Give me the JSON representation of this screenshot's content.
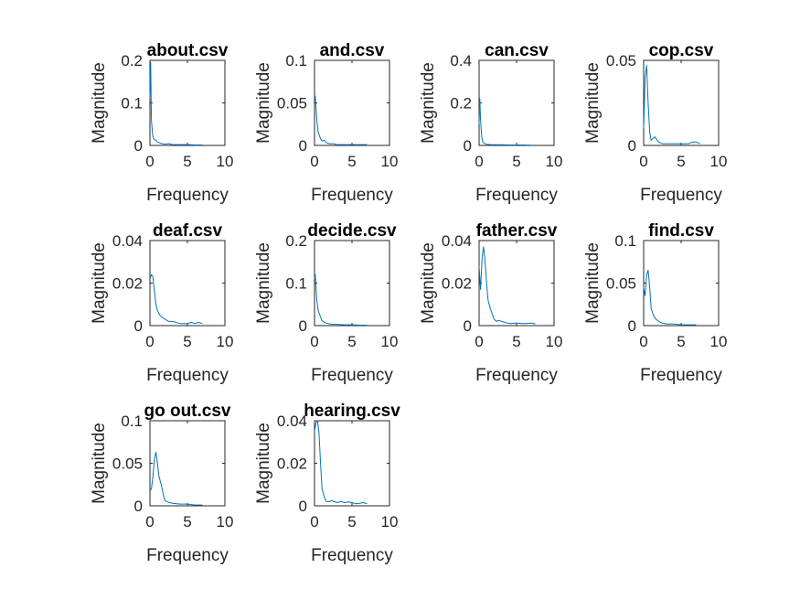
{
  "figure": {
    "background": "#ffffff",
    "line_color": "#0072bd",
    "axis_color": "#262626"
  },
  "chart_data": [
    {
      "type": "line",
      "title": "about.csv",
      "xlabel": "Frequency",
      "ylabel": "Magnitude",
      "xlim": [
        0,
        10
      ],
      "ylim": [
        0,
        0.2
      ],
      "xticks": [
        0,
        5,
        10
      ],
      "yticks": [
        0,
        0.1,
        0.2
      ],
      "grid": false,
      "series": [
        {
          "x": [
            0,
            0.1,
            0.2,
            0.35,
            0.5,
            0.8,
            1.0,
            1.3,
            1.6,
            2.0,
            2.5,
            3.0,
            4.0,
            5.0,
            6.0,
            7.0
          ],
          "y": [
            0.11,
            0.195,
            0.06,
            0.025,
            0.015,
            0.012,
            0.008,
            0.006,
            0.004,
            0.003,
            0.004,
            0.002,
            0.002,
            0.002,
            0.001,
            0.001
          ]
        }
      ]
    },
    {
      "type": "line",
      "title": "and.csv",
      "xlabel": "Frequency",
      "ylabel": "Magnitude",
      "xlim": [
        0,
        10
      ],
      "ylim": [
        0,
        0.1
      ],
      "xticks": [
        0,
        5,
        10
      ],
      "yticks": [
        0,
        0.05,
        0.1
      ],
      "grid": false,
      "series": [
        {
          "x": [
            0,
            0.1,
            0.3,
            0.5,
            0.8,
            1.0,
            1.3,
            1.6,
            2.0,
            2.5,
            3.0,
            4.0,
            5.0,
            6.0,
            7.0
          ],
          "y": [
            0.055,
            0.058,
            0.03,
            0.015,
            0.008,
            0.005,
            0.006,
            0.003,
            0.002,
            0.002,
            0.001,
            0.001,
            0.001,
            0.001,
            0.001
          ]
        }
      ]
    },
    {
      "type": "line",
      "title": "can.csv",
      "xlabel": "Frequency",
      "ylabel": "Magnitude",
      "xlim": [
        0,
        10
      ],
      "ylim": [
        0,
        0.4
      ],
      "xticks": [
        0,
        5,
        10
      ],
      "yticks": [
        0,
        0.2,
        0.4
      ],
      "grid": false,
      "series": [
        {
          "x": [
            0,
            0.1,
            0.2,
            0.35,
            0.5,
            0.8,
            1.0,
            1.5,
            2.0,
            3.0,
            4.0,
            5.0,
            6.0,
            7.0
          ],
          "y": [
            0.1,
            0.22,
            0.12,
            0.04,
            0.015,
            0.008,
            0.005,
            0.004,
            0.003,
            0.003,
            0.002,
            0.002,
            0.002,
            0.001
          ]
        }
      ]
    },
    {
      "type": "line",
      "title": "cop.csv",
      "xlabel": "Frequency",
      "ylabel": "Magnitude",
      "xlim": [
        0,
        10
      ],
      "ylim": [
        0,
        0.05
      ],
      "xticks": [
        0,
        5,
        10
      ],
      "yticks": [
        0,
        0.05
      ],
      "grid": false,
      "series": [
        {
          "x": [
            0,
            0.2,
            0.4,
            0.6,
            0.8,
            1.0,
            1.2,
            1.5,
            1.8,
            2.0,
            2.5,
            3.0,
            4.0,
            5.0,
            6.0,
            6.5,
            7.0,
            7.5
          ],
          "y": [
            0.01,
            0.04,
            0.047,
            0.025,
            0.008,
            0.003,
            0.004,
            0.005,
            0.003,
            0.002,
            0.001,
            0.001,
            0.001,
            0.001,
            0.001,
            0.002,
            0.002,
            0.001
          ]
        }
      ]
    },
    {
      "type": "line",
      "title": "deaf.csv",
      "xlabel": "Frequency",
      "ylabel": "Magnitude",
      "xlim": [
        0,
        10
      ],
      "ylim": [
        0,
        0.04
      ],
      "xticks": [
        0,
        5,
        10
      ],
      "yticks": [
        0,
        0.02,
        0.04
      ],
      "grid": false,
      "series": [
        {
          "x": [
            0,
            0.2,
            0.4,
            0.6,
            0.8,
            1.0,
            1.3,
            1.6,
            2.0,
            2.5,
            3.0,
            4.0,
            5.0,
            5.5,
            6.0,
            6.5,
            7.0
          ],
          "y": [
            0.022,
            0.024,
            0.023,
            0.016,
            0.01,
            0.007,
            0.005,
            0.004,
            0.003,
            0.002,
            0.002,
            0.001,
            0.001,
            0.0015,
            0.001,
            0.0015,
            0.001
          ]
        }
      ]
    },
    {
      "type": "line",
      "title": "decide.csv",
      "xlabel": "Frequency",
      "ylabel": "Magnitude",
      "xlim": [
        0,
        10
      ],
      "ylim": [
        0,
        0.2
      ],
      "xticks": [
        0,
        5,
        10
      ],
      "yticks": [
        0,
        0.1,
        0.2
      ],
      "grid": false,
      "series": [
        {
          "x": [
            0,
            0.1,
            0.3,
            0.5,
            0.8,
            1.0,
            1.3,
            1.6,
            2.0,
            2.5,
            3.0,
            4.0,
            5.0,
            6.0,
            7.0
          ],
          "y": [
            0.11,
            0.12,
            0.06,
            0.035,
            0.02,
            0.012,
            0.008,
            0.006,
            0.004,
            0.003,
            0.003,
            0.002,
            0.002,
            0.001,
            0.001
          ]
        }
      ]
    },
    {
      "type": "line",
      "title": "father.csv",
      "xlabel": "Frequency",
      "ylabel": "Magnitude",
      "xlim": [
        0,
        10
      ],
      "ylim": [
        0,
        0.04
      ],
      "xticks": [
        0,
        5,
        10
      ],
      "yticks": [
        0,
        0.02,
        0.04
      ],
      "grid": false,
      "series": [
        {
          "x": [
            0,
            0.2,
            0.4,
            0.6,
            0.8,
            1.0,
            1.2,
            1.5,
            1.8,
            2.0,
            2.3,
            2.6,
            3.0,
            4.0,
            5.0,
            6.0,
            7.0,
            7.5
          ],
          "y": [
            0.028,
            0.017,
            0.032,
            0.037,
            0.03,
            0.02,
            0.012,
            0.008,
            0.005,
            0.003,
            0.002,
            0.0025,
            0.002,
            0.001,
            0.0012,
            0.001,
            0.0012,
            0.0008
          ]
        }
      ]
    },
    {
      "type": "line",
      "title": "find.csv",
      "xlabel": "Frequency",
      "ylabel": "Magnitude",
      "xlim": [
        0,
        10
      ],
      "ylim": [
        0,
        0.1
      ],
      "xticks": [
        0,
        5,
        10
      ],
      "yticks": [
        0,
        0.05,
        0.1
      ],
      "grid": false,
      "series": [
        {
          "x": [
            0,
            0.2,
            0.4,
            0.6,
            0.8,
            1.0,
            1.3,
            1.6,
            2.0,
            2.5,
            3.0,
            4.0,
            5.0,
            6.0,
            7.0
          ],
          "y": [
            0.045,
            0.035,
            0.06,
            0.065,
            0.045,
            0.02,
            0.012,
            0.008,
            0.005,
            0.003,
            0.002,
            0.002,
            0.001,
            0.001,
            0.001
          ]
        }
      ]
    },
    {
      "type": "line",
      "title": "go out.csv",
      "xlabel": "Frequency",
      "ylabel": "Magnitude",
      "xlim": [
        0,
        10
      ],
      "ylim": [
        0,
        0.1
      ],
      "xticks": [
        0,
        5,
        10
      ],
      "yticks": [
        0,
        0.05,
        0.1
      ],
      "grid": false,
      "series": [
        {
          "x": [
            0,
            0.2,
            0.4,
            0.6,
            0.8,
            1.0,
            1.2,
            1.5,
            1.8,
            2.0,
            2.5,
            3.0,
            4.0,
            5.0,
            6.0,
            7.0
          ],
          "y": [
            0.018,
            0.02,
            0.035,
            0.055,
            0.063,
            0.05,
            0.035,
            0.025,
            0.012,
            0.006,
            0.004,
            0.003,
            0.002,
            0.002,
            0.001,
            0.001
          ]
        }
      ]
    },
    {
      "type": "line",
      "title": "hearing.csv",
      "xlabel": "Frequency",
      "ylabel": "Magnitude",
      "xlim": [
        0,
        10
      ],
      "ylim": [
        0,
        0.04
      ],
      "xticks": [
        0,
        5,
        10
      ],
      "yticks": [
        0,
        0.02,
        0.04
      ],
      "grid": false,
      "series": [
        {
          "x": [
            0,
            0.2,
            0.4,
            0.6,
            0.8,
            1.0,
            1.3,
            1.6,
            2.0,
            2.3,
            2.6,
            3.0,
            3.5,
            4.0,
            4.5,
            5.0,
            5.5,
            6.0,
            6.5,
            7.0
          ],
          "y": [
            0.035,
            0.039,
            0.04,
            0.034,
            0.02,
            0.008,
            0.004,
            0.002,
            0.002,
            0.0025,
            0.002,
            0.0015,
            0.002,
            0.0015,
            0.0018,
            0.0015,
            0.001,
            0.0012,
            0.0015,
            0.001
          ]
        }
      ]
    }
  ]
}
